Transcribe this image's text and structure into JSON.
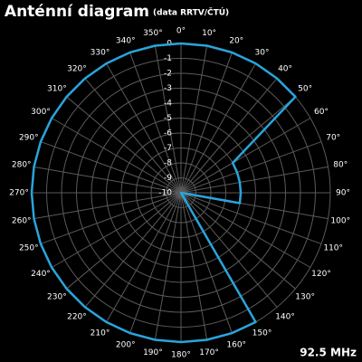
{
  "chart_data": {
    "type": "polar",
    "title": "Anténní diagram",
    "subtitle": "(data RRTV/ČTÚ)",
    "annotation": "92.5 MHz",
    "theta": [
      0,
      10,
      20,
      30,
      40,
      50,
      60,
      70,
      80,
      90,
      100,
      110,
      120,
      130,
      140,
      150,
      160,
      170,
      180,
      190,
      200,
      210,
      220,
      230,
      240,
      250,
      260,
      270,
      280,
      290,
      300,
      310,
      320,
      330,
      340,
      350
    ],
    "values": [
      0,
      0,
      0,
      0,
      0,
      0,
      -6,
      -6,
      -6,
      -6,
      -6,
      -10,
      -10,
      -10,
      -10,
      0,
      0,
      0,
      0,
      0,
      0,
      0,
      0,
      0,
      0,
      0,
      0,
      0,
      0,
      0,
      0,
      0,
      0,
      0,
      0,
      0
    ],
    "color": "#2aa4dc",
    "rlim": [
      -10,
      0
    ],
    "rticks": [
      0,
      -1,
      -2,
      -3,
      -4,
      -5,
      -6,
      -7,
      -8,
      -9,
      -10
    ],
    "thetaticks": [
      {
        "value": 0,
        "label": "0°"
      },
      {
        "value": 10,
        "label": "10°"
      },
      {
        "value": 20,
        "label": "20°"
      },
      {
        "value": 30,
        "label": "30°"
      },
      {
        "value": 40,
        "label": "40°"
      },
      {
        "value": 50,
        "label": "50°"
      },
      {
        "value": 60,
        "label": "60°"
      },
      {
        "value": 70,
        "label": "70°"
      },
      {
        "value": 80,
        "label": "80°"
      },
      {
        "value": 90,
        "label": "90°"
      },
      {
        "value": 100,
        "label": "100°"
      },
      {
        "value": 110,
        "label": "110°"
      },
      {
        "value": 120,
        "label": "120°"
      },
      {
        "value": 130,
        "label": "130°"
      },
      {
        "value": 140,
        "label": "140°"
      },
      {
        "value": 150,
        "label": "150°"
      },
      {
        "value": 160,
        "label": "160°"
      },
      {
        "value": 170,
        "label": "170°"
      },
      {
        "value": 180,
        "label": "180°"
      },
      {
        "value": 190,
        "label": "190°"
      },
      {
        "value": 200,
        "label": "200°"
      },
      {
        "value": 210,
        "label": "210°"
      },
      {
        "value": 220,
        "label": "220°"
      },
      {
        "value": 230,
        "label": "230°"
      },
      {
        "value": 240,
        "label": "240°"
      },
      {
        "value": 250,
        "label": "250°"
      },
      {
        "value": 260,
        "label": "260°"
      },
      {
        "value": 270,
        "label": "270°"
      },
      {
        "value": 280,
        "label": "280°"
      },
      {
        "value": 290,
        "label": "290°"
      },
      {
        "value": 300,
        "label": "300°"
      },
      {
        "value": 310,
        "label": "310°"
      },
      {
        "value": 320,
        "label": "320°"
      },
      {
        "value": 330,
        "label": "330°"
      },
      {
        "value": 340,
        "label": "340°"
      },
      {
        "value": 350,
        "label": "350°"
      }
    ],
    "grid": true
  }
}
